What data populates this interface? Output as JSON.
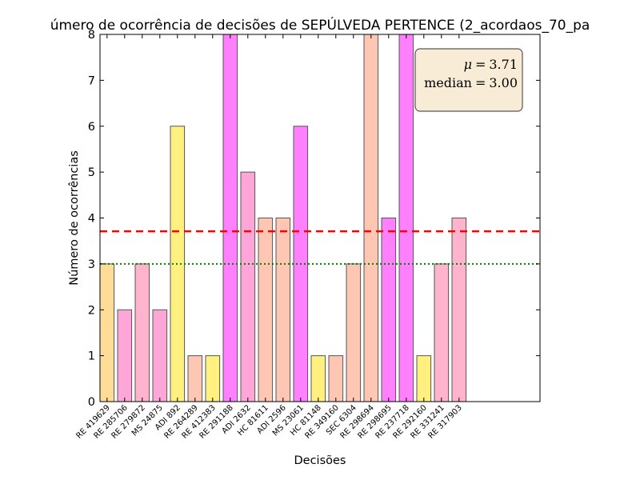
{
  "chart_data": {
    "type": "bar",
    "title": "úmero de ocorrência de decisões de SEPÚLVEDA PERTENCE (2_acordaos_70_pa",
    "xlabel": "Decisões",
    "ylabel": "Número de ocorrências",
    "ylim": [
      0,
      8
    ],
    "yticks": [
      "0",
      "1",
      "2",
      "3",
      "4",
      "5",
      "6",
      "7",
      "8"
    ],
    "categories": [
      "RE 419629",
      "RE 285706",
      "RE 279872",
      "MS 24875",
      "ADI 892",
      "RE 264289",
      "RE 412383",
      "RE 291188",
      "ADI 2632",
      "HC 81611",
      "ADI 2596",
      "MS 23061",
      "HC 81148",
      "RE 349160",
      "SEC 6304",
      "RE 298694",
      "RE 298695",
      "RE 237718",
      "RE 292160",
      "RE 331241",
      "RE 317903"
    ],
    "values": [
      3,
      2,
      3,
      2,
      6,
      1,
      1,
      8,
      5,
      4,
      4,
      6,
      1,
      1,
      3,
      8,
      4,
      8,
      1,
      3,
      4
    ],
    "colors": [
      "#ffdd99",
      "#ffa6d9",
      "#ffb3cc",
      "#ffa6d9",
      "#fff080",
      "#ffc7b3",
      "#fff080",
      "#ff80ff",
      "#ffa6d9",
      "#ffc7b3",
      "#ffc7b3",
      "#ff80ff",
      "#fff080",
      "#ffc7b3",
      "#ffc7b3",
      "#ffc7b3",
      "#ff80ff",
      "#ff80ff",
      "#fff080",
      "#ffb3cc",
      "#ffb3cc"
    ],
    "mean": 3.71,
    "median": 3.0,
    "mean_line_color": "#ff0000",
    "median_line_color": "#008000",
    "stats_box": {
      "mu_symbol": "μ",
      "mean_label": "3.71",
      "median_word": "median",
      "median_label": "3.00",
      "equals": "=",
      "placement": "top-right",
      "face_color": "#f9ecd6",
      "edge_color": "#555555"
    },
    "grid": false
  }
}
